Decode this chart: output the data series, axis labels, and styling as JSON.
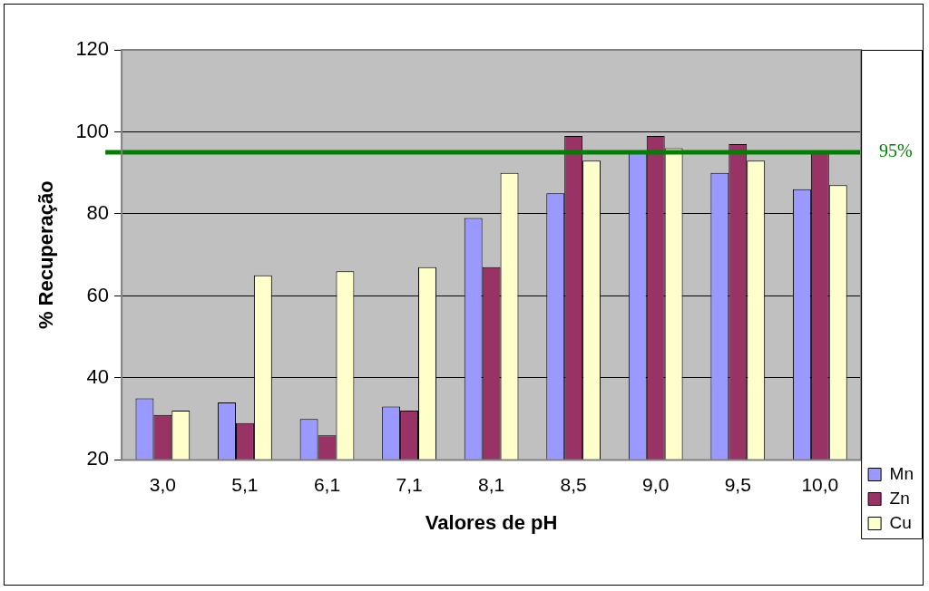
{
  "chart_data": {
    "type": "bar",
    "xlabel": "Valores de pH",
    "ylabel": "% Recuperação",
    "categories": [
      "3,0",
      "5,1",
      "6,1",
      "7,1",
      "8,1",
      "8,5",
      "9,0",
      "9,5",
      "10,0"
    ],
    "series": [
      {
        "name": "Mn",
        "color": "#9999ff",
        "values": [
          35,
          34,
          30,
          33,
          79,
          85,
          95,
          90,
          86
        ]
      },
      {
        "name": "Zn",
        "color": "#993366",
        "values": [
          31,
          29,
          26,
          32,
          67,
          99,
          99,
          97,
          95
        ]
      },
      {
        "name": "Cu",
        "color": "#ffffcc",
        "values": [
          32,
          65,
          66,
          67,
          90,
          93,
          96,
          93,
          87
        ]
      }
    ],
    "ylim": [
      20,
      120
    ],
    "yticks": [
      20,
      40,
      60,
      80,
      100,
      120
    ],
    "grid": "y",
    "legend": "bottom right",
    "ref_lines": [
      {
        "axis": "y",
        "value": 95,
        "label": "95%",
        "color": "#008000"
      }
    ]
  }
}
